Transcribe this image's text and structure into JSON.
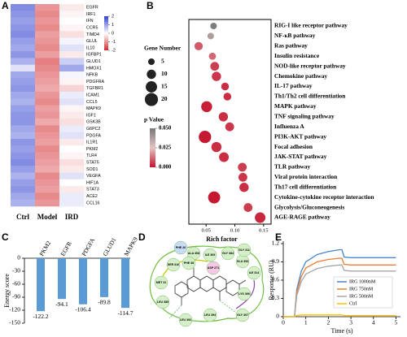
{
  "chart_data": [
    {
      "type": "heatmap",
      "panel": "A",
      "categories": [
        "EGFR",
        "IRF1",
        "IFN",
        "CCR5",
        "TIMD4",
        "GLUL",
        "IL10",
        "IGFBP1",
        "GLUD1",
        "HMOX1",
        "NFKB",
        "PDGFRA",
        "TGFBR1",
        "ICAM1",
        "CCL5",
        "MAPK9",
        "IGF1",
        "GSK3B",
        "G6PC2",
        "PDGFA",
        "IL1R1",
        "PKM2",
        "TLR4",
        "STAT5",
        "SOD1",
        "VEGFA",
        "HIF1A",
        "STAT3",
        "ACE2",
        "CCL16"
      ],
      "columns": [
        "Ctrl",
        "Model",
        "IRD"
      ],
      "values": [
        [
          1.2,
          -1.0,
          -0.2
        ],
        [
          1.1,
          -1.1,
          -0.1
        ],
        [
          1.0,
          -1.0,
          0.0
        ],
        [
          1.1,
          -1.1,
          -0.1
        ],
        [
          1.2,
          -0.9,
          -0.3
        ],
        [
          1.0,
          -1.0,
          0.1
        ],
        [
          0.9,
          -1.1,
          0.3
        ],
        [
          1.1,
          -0.9,
          -0.2
        ],
        [
          0.8,
          -1.2,
          0.5
        ],
        [
          0.3,
          -1.1,
          0.9
        ],
        [
          0.9,
          -1.0,
          0.1
        ],
        [
          1.0,
          -0.9,
          -0.1
        ],
        [
          1.1,
          -0.8,
          -0.4
        ],
        [
          0.9,
          -1.0,
          0.2
        ],
        [
          0.8,
          -1.1,
          0.3
        ],
        [
          1.0,
          -0.9,
          -0.1
        ],
        [
          1.1,
          -1.0,
          -0.2
        ],
        [
          1.1,
          -0.8,
          -0.3
        ],
        [
          0.9,
          -1.1,
          0.2
        ],
        [
          0.8,
          -1.0,
          0.3
        ],
        [
          1.1,
          -0.9,
          -0.2
        ],
        [
          1.0,
          -1.1,
          0.0
        ],
        [
          1.1,
          -1.0,
          -0.1
        ],
        [
          1.2,
          -0.9,
          -0.3
        ],
        [
          1.0,
          -0.8,
          -0.2
        ],
        [
          0.8,
          -1.1,
          0.3
        ],
        [
          1.0,
          -1.0,
          0.0
        ],
        [
          1.1,
          -0.9,
          -0.2
        ],
        [
          0.9,
          -1.1,
          0.2
        ],
        [
          0.8,
          -1.0,
          0.2
        ]
      ],
      "zlim": [
        -2,
        2
      ],
      "zticks": [
        2,
        1,
        0,
        -1,
        -2
      ],
      "colormap": {
        "high": "#2f3fd0",
        "mid": "#ffffff",
        "low": "#d42a2e"
      }
    },
    {
      "type": "bubble",
      "panel": "B",
      "categories": [
        "RIG-I like receptor pathway",
        "NF-κB pathway",
        "Ras pathway",
        "Insulin resistance",
        "NOD-like receptor pathway",
        "Chemokine pathway",
        "IL-17 pathway",
        "Th1/Th2 cell differentiation",
        "MAPK pathway",
        "TNF signaling pathway",
        "Influenza A",
        "PI3K-AKT pathway",
        "Focal adhesion",
        "JAK-STAT pathway",
        "TLR pathway",
        "Viral protein interaction",
        "Th17 cell differentiation",
        "Cytokine-cytokine receptor interaction",
        "Glycolysis/Gluconeogenesis",
        "AGE-RAGE pathway"
      ],
      "values": [
        0.063,
        0.058,
        0.037,
        0.061,
        0.065,
        0.068,
        0.083,
        0.087,
        0.051,
        0.08,
        0.091,
        0.048,
        0.068,
        0.081,
        0.113,
        0.114,
        0.116,
        0.064,
        0.123,
        0.144
      ],
      "sizes": [
        5,
        5,
        8,
        6,
        9,
        10,
        7,
        7,
        14,
        10,
        9,
        18,
        12,
        11,
        9,
        9,
        10,
        17,
        9,
        13
      ],
      "p_values": [
        0.048,
        0.038,
        0.01,
        0.012,
        0.006,
        0.005,
        0.004,
        0.004,
        0.002,
        0.004,
        0.005,
        0.001,
        0.004,
        0.004,
        0.006,
        0.005,
        0.004,
        0.001,
        0.006,
        0.003
      ],
      "x_label": "Rich factor",
      "xlim": [
        0.02,
        0.163
      ],
      "xticks": [
        0.05,
        {
          "value": 0.1,
          "label": "0.10"
        },
        0.15
      ],
      "size_title": "Gene Number",
      "size_legend": [
        5,
        10,
        15,
        20
      ],
      "color_title": "p Value",
      "colorbar_ticks": [
        {
          "value": 0.05,
          "label": "0.050"
        },
        {
          "value": 0.025,
          "label": "0.025"
        },
        {
          "value": 0,
          "label": "0.000"
        }
      ],
      "colormap": {
        "high": "#777777",
        "mid": "#e6c4c4",
        "low": "#c4122b"
      }
    },
    {
      "type": "bar",
      "panel": "C",
      "categories": [
        "PKM2",
        "EGFR",
        "PDGFA",
        "GLUD1",
        "MAPK9"
      ],
      "values": [
        -122.2,
        -94.1,
        -106.4,
        -89.8,
        -114.7
      ],
      "color": "#5b9bd5",
      "y_label": "Energy score",
      "ylim": [
        -150,
        0
      ],
      "yticks": [
        0,
        -30,
        -60,
        -90,
        -120,
        -150
      ]
    },
    {
      "type": "line",
      "panel": "E",
      "x": [
        0,
        0.5,
        0.6,
        0.8,
        1.0,
        1.5,
        2.0,
        2.5,
        2.6,
        2.7,
        3.0,
        4.0,
        5.0
      ],
      "series": [
        {
          "name": "IRG 1000nM",
          "color": "#4a86c8",
          "values": [
            0,
            0,
            0.45,
            0.75,
            0.9,
            1.02,
            1.07,
            1.1,
            1.1,
            0.98,
            0.97,
            0.97,
            0.97
          ]
        },
        {
          "name": "IRG 750nM",
          "color": "#ed7d31",
          "values": [
            0,
            0,
            0.4,
            0.66,
            0.8,
            0.9,
            0.94,
            0.96,
            0.96,
            0.86,
            0.85,
            0.85,
            0.85
          ]
        },
        {
          "name": "IRG 500nM",
          "color": "#a5a5a5",
          "values": [
            0,
            0,
            0.35,
            0.58,
            0.7,
            0.79,
            0.83,
            0.85,
            0.85,
            0.76,
            0.75,
            0.75,
            0.75
          ]
        },
        {
          "name": "Ctrl",
          "color": "#ffc000",
          "values": [
            0,
            0,
            0.02,
            0.03,
            0.03,
            0.03,
            0.03,
            0.03,
            0.03,
            0.02,
            0.02,
            0.02,
            0.02
          ]
        }
      ],
      "x_label": "Time (s)",
      "y_label": "Response (RU)",
      "xlim": [
        0,
        5.2
      ],
      "xticks": [
        0,
        1,
        2,
        3,
        4,
        5
      ],
      "ylim": [
        0,
        1.2
      ],
      "yticks": [
        0,
        0.3,
        0.6,
        0.9,
        1.2
      ]
    }
  ],
  "diagram": {
    "panel": "D",
    "residues": [
      "ALA 308",
      "ILE 309",
      "GLY 384",
      "GLU 353",
      "ILE 314",
      "GLY 311",
      "LYS 306",
      "SER 310",
      "PHE 38",
      "MET 31",
      "LEU 385",
      "LEU 394",
      "GLY 307",
      "PHE 26",
      "ASP 271",
      "LEU 392"
    ]
  }
}
